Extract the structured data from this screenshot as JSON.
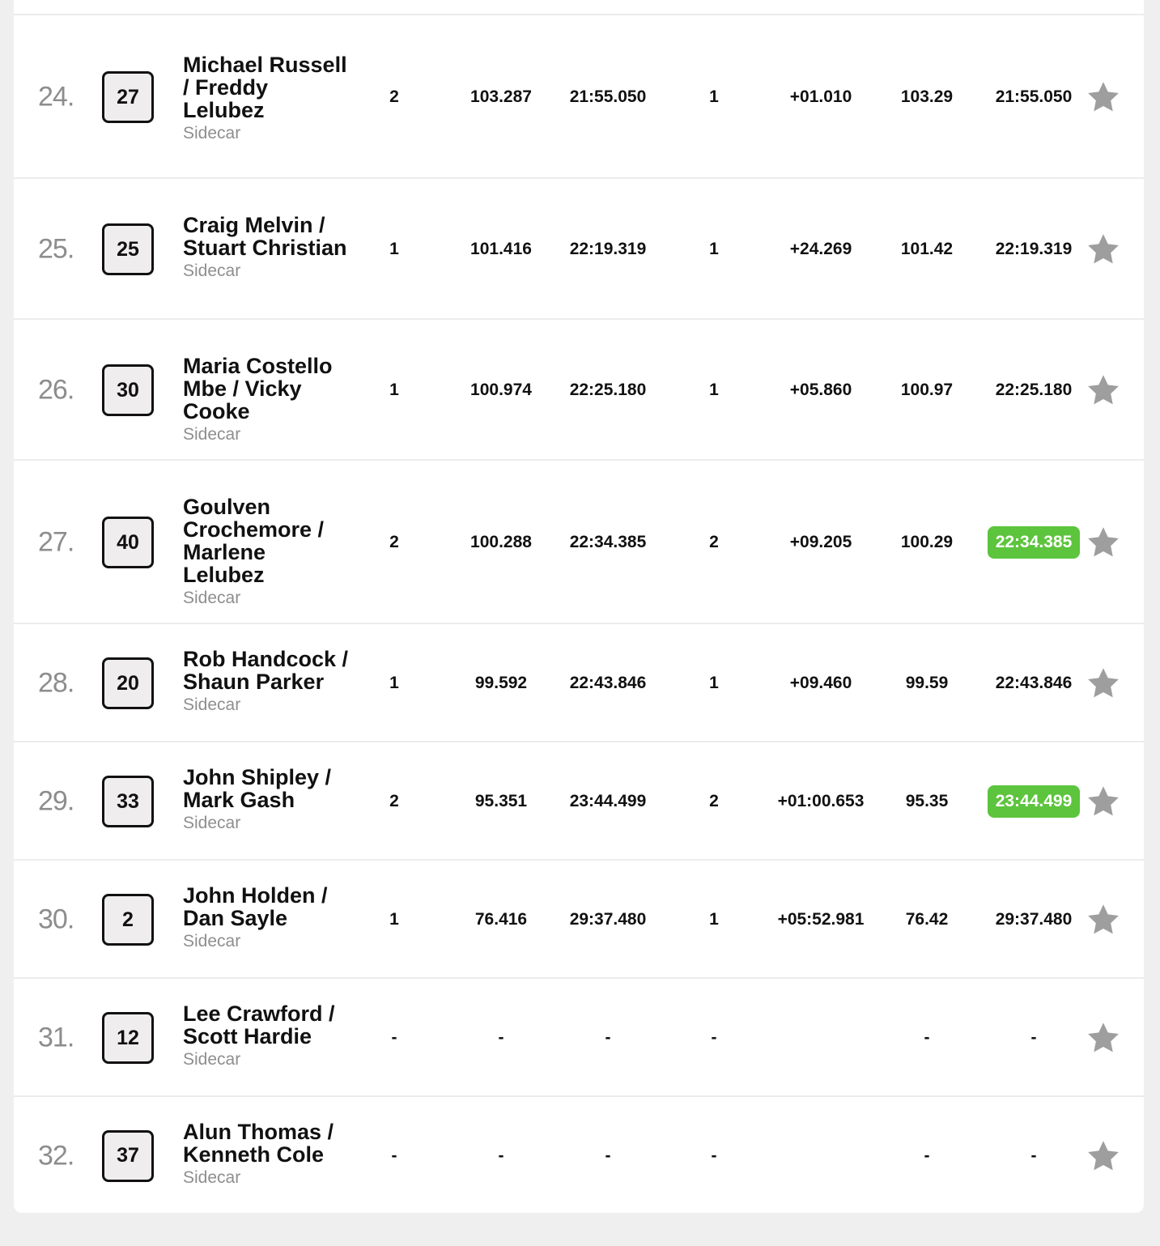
{
  "results": {
    "rows": [
      {
        "position": "24.",
        "number": "27",
        "name": "Michael Russell / Freddy Lelubez",
        "class": "Sidecar",
        "laps": "2",
        "speed": "103.287",
        "time": "21:55.050",
        "heat": "1",
        "gap": "+01.010",
        "best_speed": "103.29",
        "best_lap": "21:55.050",
        "best_lap_highlight": false
      },
      {
        "position": "25.",
        "number": "25",
        "name": "Craig Melvin / Stuart Christian",
        "class": "Sidecar",
        "laps": "1",
        "speed": "101.416",
        "time": "22:19.319",
        "heat": "1",
        "gap": "+24.269",
        "best_speed": "101.42",
        "best_lap": "22:19.319",
        "best_lap_highlight": false
      },
      {
        "position": "26.",
        "number": "30",
        "name": "Maria Costello Mbe / Vicky Cooke",
        "class": "Sidecar",
        "laps": "1",
        "speed": "100.974",
        "time": "22:25.180",
        "heat": "1",
        "gap": "+05.860",
        "best_speed": "100.97",
        "best_lap": "22:25.180",
        "best_lap_highlight": false
      },
      {
        "position": "27.",
        "number": "40",
        "name": "Goulven Crochemore / Marlene Lelubez",
        "class": "Sidecar",
        "laps": "2",
        "speed": "100.288",
        "time": "22:34.385",
        "heat": "2",
        "gap": "+09.205",
        "best_speed": "100.29",
        "best_lap": "22:34.385",
        "best_lap_highlight": true
      },
      {
        "position": "28.",
        "number": "20",
        "name": "Rob Handcock / Shaun Parker",
        "class": "Sidecar",
        "laps": "1",
        "speed": "99.592",
        "time": "22:43.846",
        "heat": "1",
        "gap": "+09.460",
        "best_speed": "99.59",
        "best_lap": "22:43.846",
        "best_lap_highlight": false
      },
      {
        "position": "29.",
        "number": "33",
        "name": "John Shipley / Mark Gash",
        "class": "Sidecar",
        "laps": "2",
        "speed": "95.351",
        "time": "23:44.499",
        "heat": "2",
        "gap": "+01:00.653",
        "best_speed": "95.35",
        "best_lap": "23:44.499",
        "best_lap_highlight": true
      },
      {
        "position": "30.",
        "number": "2",
        "name": "John Holden / Dan Sayle",
        "class": "Sidecar",
        "laps": "1",
        "speed": "76.416",
        "time": "29:37.480",
        "heat": "1",
        "gap": "+05:52.981",
        "best_speed": "76.42",
        "best_lap": "29:37.480",
        "best_lap_highlight": false
      },
      {
        "position": "31.",
        "number": "12",
        "name": "Lee Crawford / Scott Hardie",
        "class": "Sidecar",
        "laps": "-",
        "speed": "-",
        "time": "-",
        "heat": "-",
        "gap": "",
        "best_speed": "-",
        "best_lap": "-",
        "best_lap_highlight": false
      },
      {
        "position": "32.",
        "number": "37",
        "name": "Alun Thomas / Kenneth Cole",
        "class": "Sidecar",
        "laps": "-",
        "speed": "-",
        "time": "-",
        "heat": "-",
        "gap": "",
        "best_speed": "-",
        "best_lap": "-",
        "best_lap_highlight": false
      }
    ]
  },
  "icons": {
    "favorite": "star-icon"
  },
  "colors": {
    "highlight": "#5dc43d",
    "star": "#9e9e9e",
    "position_text": "#8d8d8d"
  }
}
